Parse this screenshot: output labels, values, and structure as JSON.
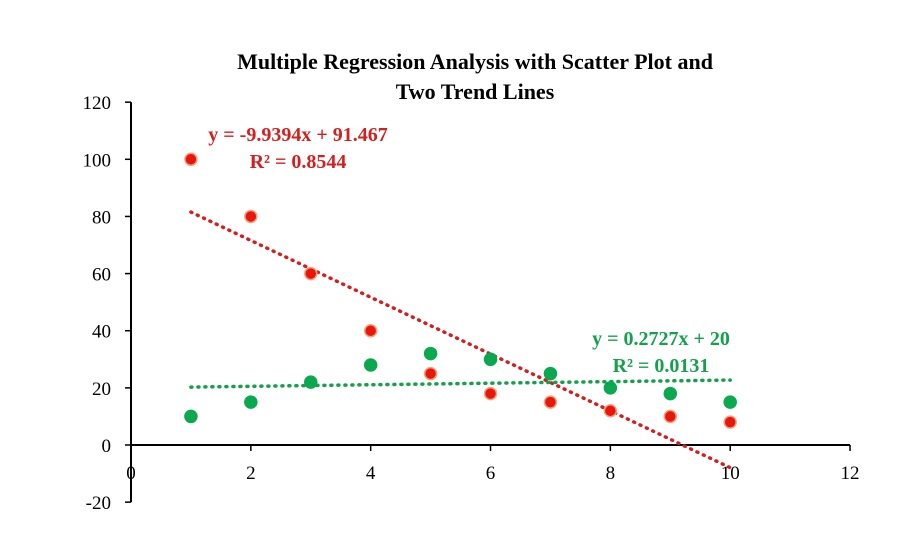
{
  "chart_data": {
    "type": "scatter",
    "title": [
      "Multiple Regression Analysis with Scatter Plot and",
      "Two Trend Lines"
    ],
    "xlabel": "",
    "ylabel": "",
    "xlim": [
      0,
      12
    ],
    "ylim": [
      -20,
      120
    ],
    "x_ticks": [
      0,
      2,
      4,
      6,
      8,
      10,
      12
    ],
    "y_ticks": [
      -20,
      0,
      20,
      40,
      60,
      80,
      100,
      120
    ],
    "grid": false,
    "legend": "none",
    "series": [
      {
        "color": "#e8160c",
        "marker_edge": "#f2a37a",
        "x": [
          1,
          2,
          3,
          4,
          5,
          6,
          7,
          8,
          9,
          10
        ],
        "y": [
          100,
          80,
          60,
          40,
          25,
          18,
          15,
          12,
          10,
          8
        ],
        "trendline": {
          "slope": -9.9394,
          "intercept": 91.467,
          "x_range": [
            1,
            10
          ],
          "style": "dotted",
          "equation": "y = -9.9394x + 91.467",
          "r2": "R² = 0.8544"
        }
      },
      {
        "color": "#0aa84f",
        "marker_edge": "#0aa84f",
        "x": [
          1,
          2,
          3,
          4,
          5,
          6,
          7,
          8,
          9,
          10
        ],
        "y": [
          10,
          15,
          22,
          28,
          32,
          30,
          25,
          20,
          18,
          15
        ],
        "trendline": {
          "slope": 0.2727,
          "intercept": 20,
          "x_range": [
            1,
            10
          ],
          "style": "dotted",
          "equation": "y = 0.2727x + 20",
          "r2": "R² = 0.0131"
        }
      }
    ],
    "colors": {
      "red_trend": "#d41f1f",
      "green_trend": "#13a14b",
      "axis": "#000000"
    }
  }
}
